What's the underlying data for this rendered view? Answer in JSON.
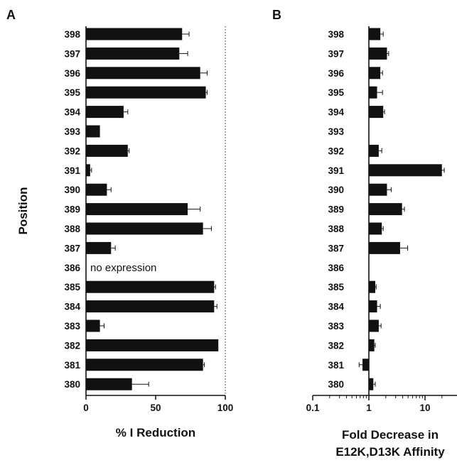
{
  "chart_data": [
    {
      "panel": "A",
      "type": "bar",
      "orientation": "horizontal",
      "ylabel": "Position",
      "xlabel": "% I Reduction",
      "xlim": [
        0,
        100
      ],
      "x_ticks": [
        "0",
        "50",
        "100"
      ],
      "reference_line": 100,
      "categories": [
        "398",
        "397",
        "396",
        "395",
        "394",
        "393",
        "392",
        "391",
        "390",
        "389",
        "388",
        "387",
        "386",
        "385",
        "384",
        "383",
        "382",
        "381",
        "380"
      ],
      "values": [
        69,
        67,
        82,
        86,
        27,
        10,
        30,
        3,
        15,
        73,
        84,
        18,
        null,
        92,
        92,
        10,
        95,
        84,
        33
      ],
      "errors": [
        5,
        6,
        5,
        1,
        3,
        0,
        1,
        1,
        3,
        9,
        6,
        3,
        null,
        1,
        2,
        3,
        0,
        1,
        12
      ],
      "annotations": [
        {
          "category": "386",
          "text": "no expression"
        }
      ]
    },
    {
      "panel": "B",
      "type": "bar",
      "orientation": "horizontal",
      "xlabel": "Fold Decrease in",
      "xlabel2": "E12K,D13K Affinity",
      "xscale": "log",
      "xlim": [
        0.1,
        25
      ],
      "baseline": 1,
      "x_ticks": [
        "0.1",
        "1",
        "10"
      ],
      "categories": [
        "398",
        "397",
        "396",
        "395",
        "394",
        "393",
        "392",
        "391",
        "390",
        "389",
        "388",
        "387",
        "386",
        "385",
        "384",
        "383",
        "382",
        "381",
        "380"
      ],
      "values": [
        1.6,
        2.1,
        1.6,
        1.4,
        1.8,
        null,
        1.5,
        20,
        2.1,
        3.9,
        1.7,
        3.6,
        null,
        1.3,
        1.4,
        1.5,
        1.25,
        0.77,
        1.2
      ],
      "errors": [
        0.2,
        0.15,
        0.15,
        0.35,
        0.1,
        null,
        0.2,
        2,
        0.4,
        0.4,
        0.1,
        1.3,
        null,
        0.05,
        0.2,
        0.15,
        0.05,
        0.1,
        0.1
      ]
    }
  ]
}
